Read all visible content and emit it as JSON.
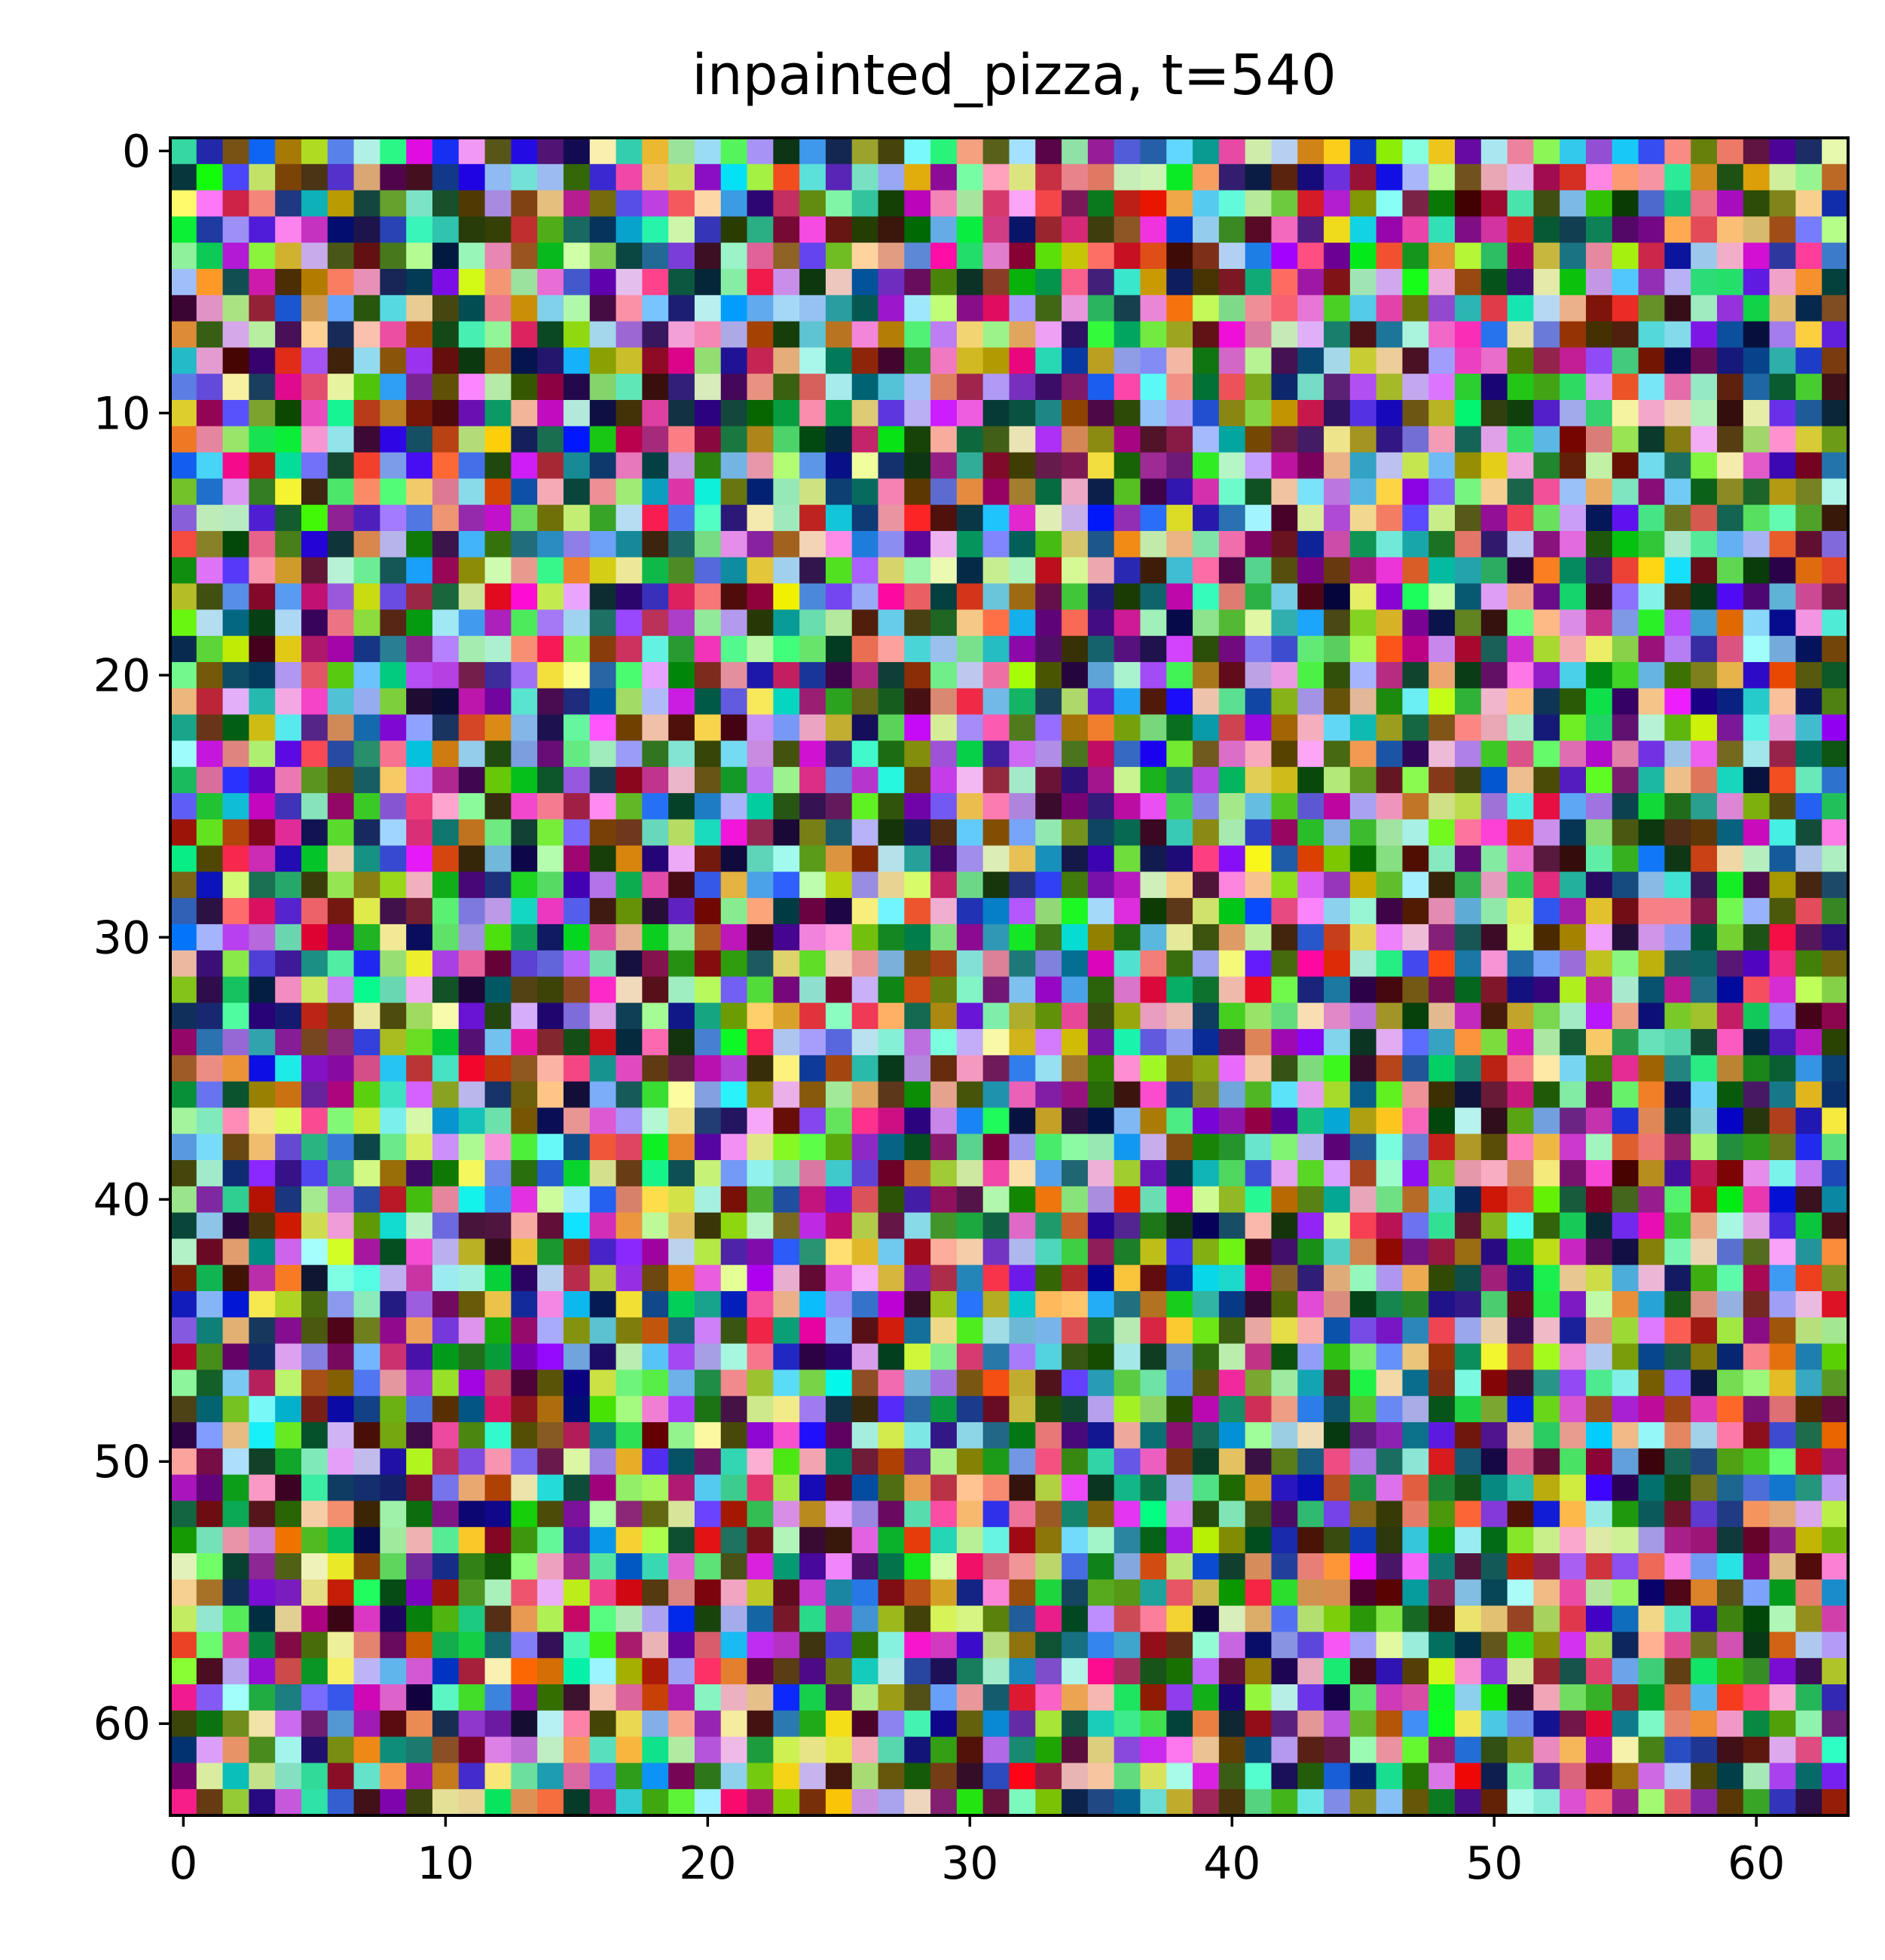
{
  "chart_data": {
    "type": "heatmap",
    "title": "inpainted_pizza, t=540",
    "xlabel": "",
    "ylabel": "",
    "grid": false,
    "legend": "none",
    "x_ticks": [
      0,
      10,
      20,
      30,
      40,
      50,
      60
    ],
    "y_ticks": [
      0,
      10,
      20,
      30,
      40,
      50,
      60
    ],
    "x_tick_labels": [
      "0",
      "10",
      "20",
      "30",
      "40",
      "50",
      "60"
    ],
    "y_tick_labels": [
      "0",
      "10",
      "20",
      "30",
      "40",
      "50",
      "60"
    ],
    "xlim": [
      -0.5,
      63.5
    ],
    "ylim": [
      63.5,
      -0.5
    ],
    "image_rows": 64,
    "image_cols": 64,
    "content": "random RGB noise pixels"
  }
}
